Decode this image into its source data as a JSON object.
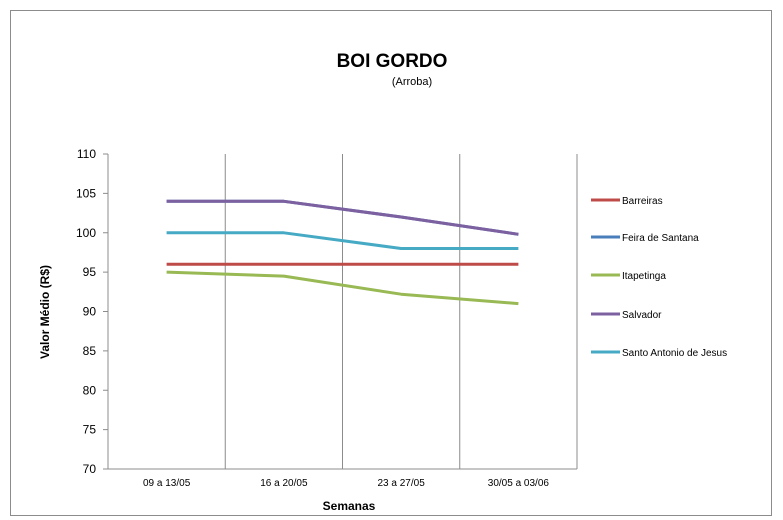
{
  "chart_data": {
    "type": "line",
    "title": "BOI GORDO",
    "subtitle": "(Arroba)",
    "xlabel": "Semanas",
    "ylabel": "Valor Médio (R$)",
    "ylim": [
      70,
      110
    ],
    "yticks": [
      "70",
      "75",
      "80",
      "85",
      "90",
      "95",
      "100",
      "105",
      "110"
    ],
    "categories": [
      "09 a 13/05",
      "16 a 20/05",
      "23 a 27/05",
      "30/05 a 03/06"
    ],
    "grid": "vertical",
    "legend_position": "right",
    "series": [
      {
        "name": "Barreiras",
        "color": "#be4b48",
        "values": [
          96,
          96,
          96,
          96
        ]
      },
      {
        "name": "Feira de Santana",
        "color": "#4a7ebb",
        "values": [
          104,
          104,
          102,
          99.8
        ]
      },
      {
        "name": "Itapetinga",
        "color": "#98b954",
        "values": [
          95,
          94.5,
          92.2,
          91
        ]
      },
      {
        "name": "Salvador",
        "color": "#7d60a0",
        "values": [
          104,
          104,
          102,
          99.8
        ]
      },
      {
        "name": "Santo Antonio de Jesus",
        "color": "#46aac5",
        "values": [
          100,
          100,
          98,
          98
        ]
      }
    ]
  }
}
